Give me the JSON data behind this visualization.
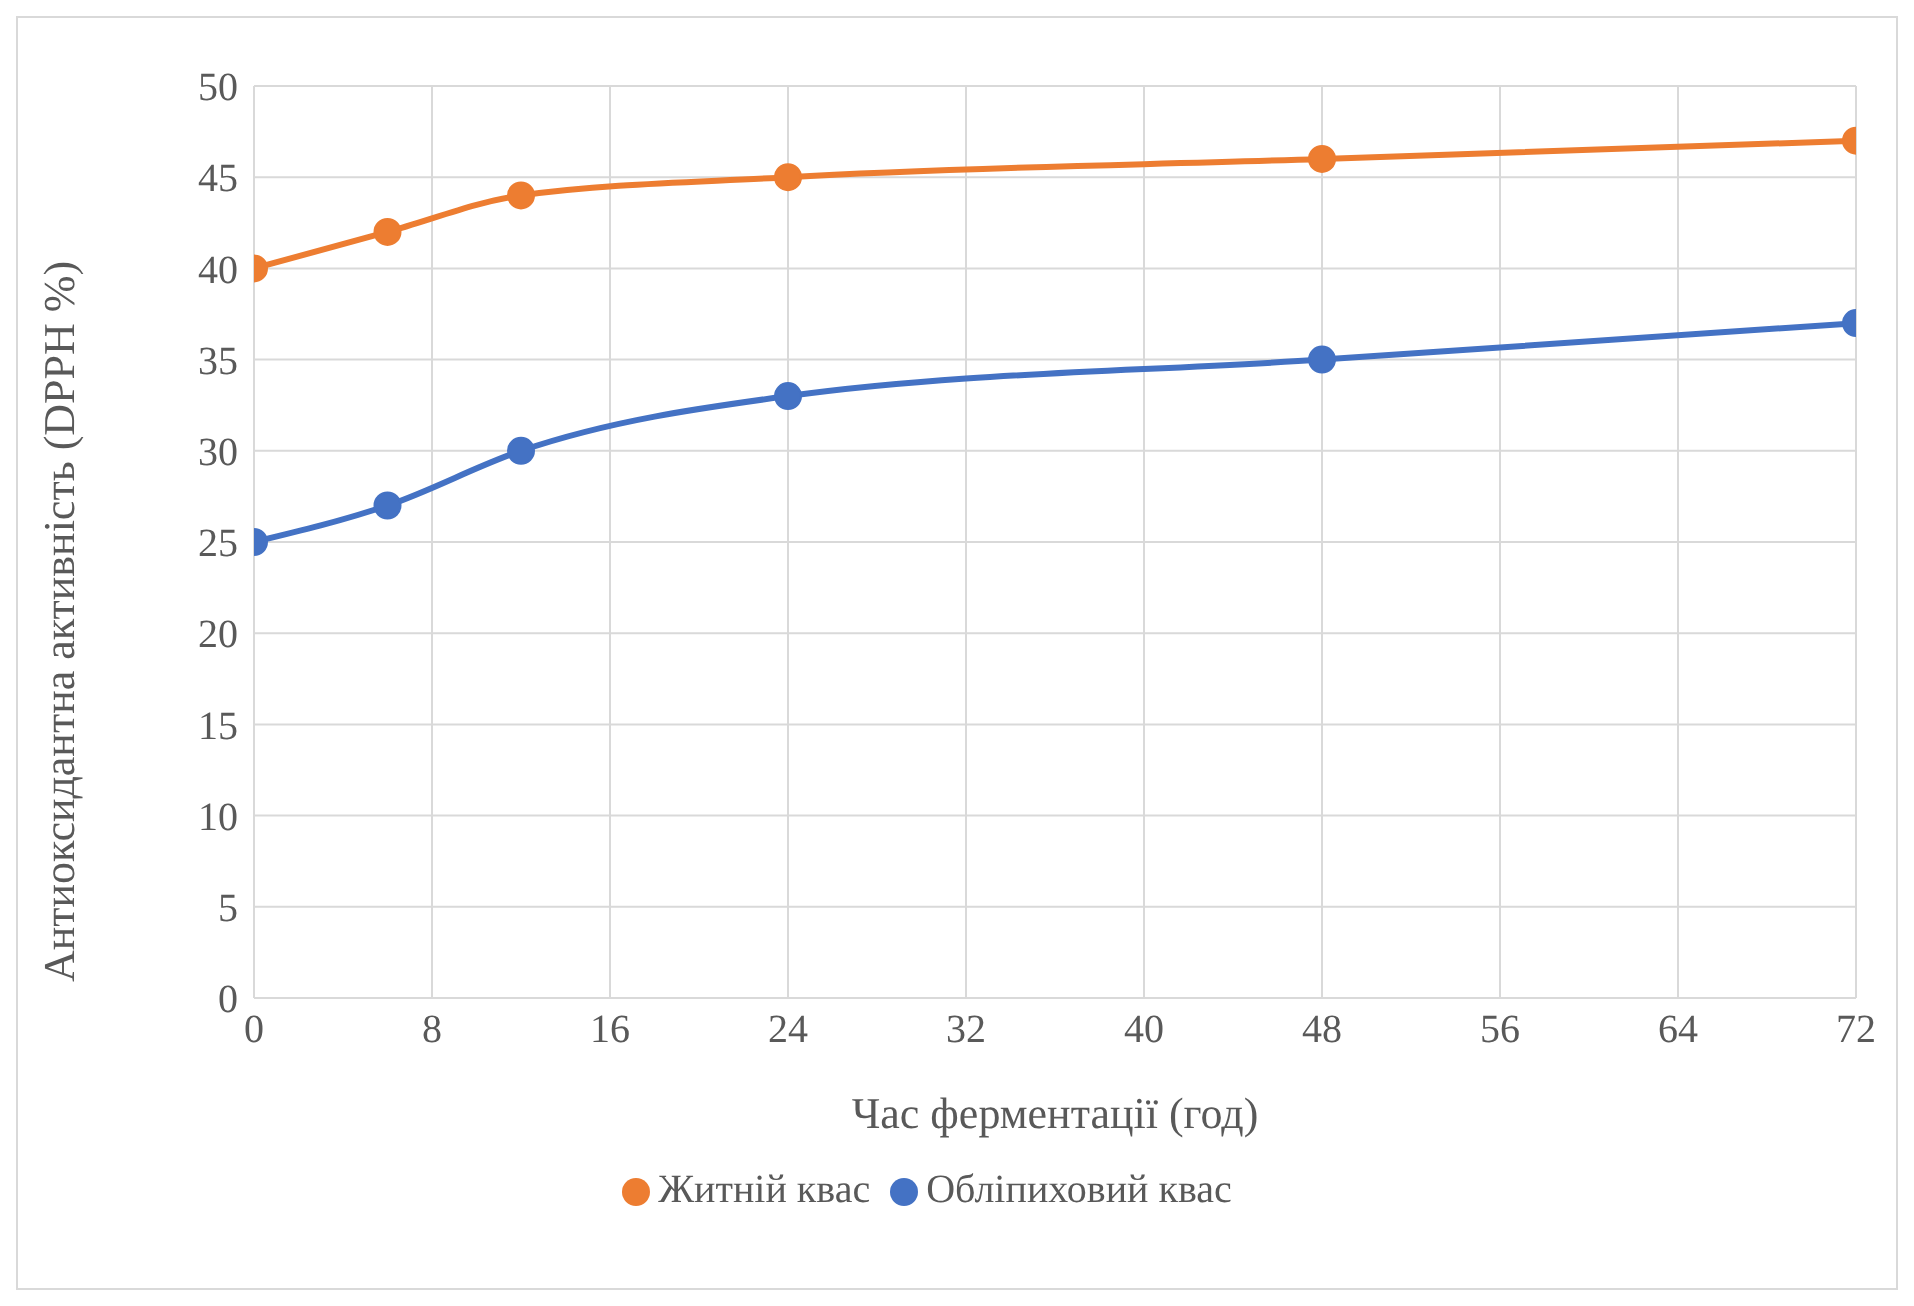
{
  "chart_data": {
    "type": "line",
    "xlabel": "Час ферментації (год)",
    "ylabel": "Антиоксидантна активність (DPPH %)",
    "x": [
      0,
      6,
      12,
      24,
      48,
      72
    ],
    "series": [
      {
        "name": "Житній квас",
        "color": "#ed7d31",
        "values": [
          40,
          42,
          44,
          45,
          46,
          47
        ]
      },
      {
        "name": "Обліпиховий квас",
        "color": "#4472c4",
        "values": [
          25,
          27,
          30,
          33,
          35,
          37
        ]
      }
    ],
    "xlim": [
      0,
      72
    ],
    "xticks": [
      0,
      8,
      16,
      24,
      32,
      40,
      48,
      56,
      64,
      72
    ],
    "ylim": [
      0,
      50
    ],
    "yticks": [
      0,
      5,
      10,
      15,
      20,
      25,
      30,
      35,
      40,
      45,
      50
    ],
    "grid": true,
    "legend": "bottom",
    "marker": "circle",
    "line_style": "solid"
  }
}
